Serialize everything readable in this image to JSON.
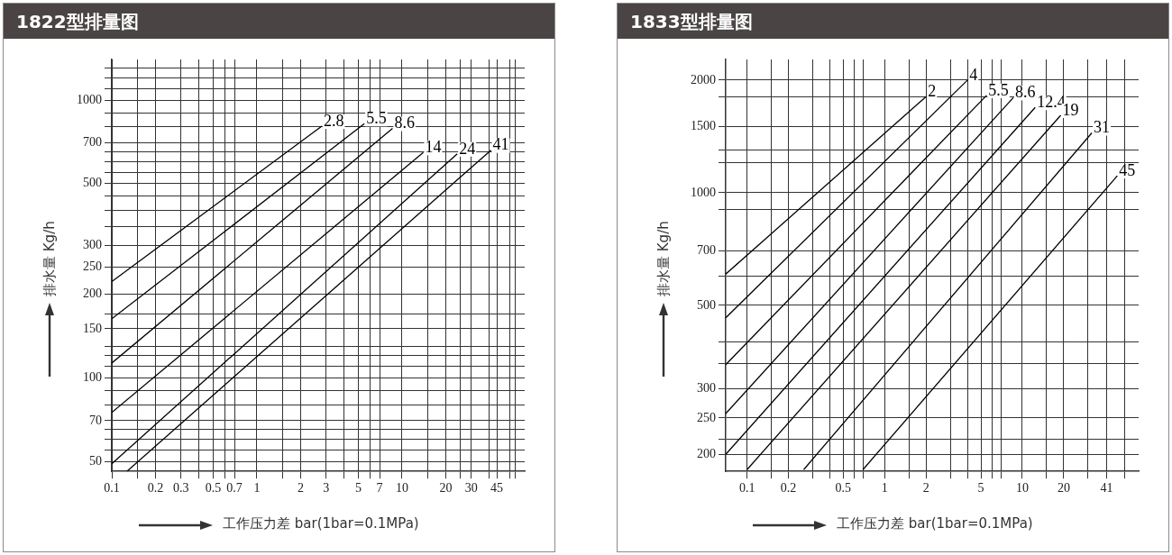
{
  "chart_data": [
    {
      "type": "line",
      "title": "1822型排量图",
      "xlabel": "工作压力差 bar(1bar=0.1MPa)",
      "ylabel": "排水量 Kg/h",
      "log": "xy",
      "grid": true,
      "marker": "none",
      "line_style": "solid",
      "xlim": [
        0.1,
        70
      ],
      "ylim": [
        46,
        1400
      ],
      "xticks": [
        0.1,
        {
          "value": 0.15,
          "label": null
        },
        0.2,
        0.3,
        {
          "value": 0.4,
          "label": null
        },
        0.5,
        {
          "value": 0.6,
          "label": null
        },
        0.7,
        1,
        {
          "value": 1.5,
          "label": null
        },
        2,
        3,
        {
          "value": 4,
          "label": null
        },
        5,
        {
          "value": 6,
          "label": null
        },
        7,
        10,
        {
          "value": 15,
          "label": null
        },
        20,
        {
          "value": 25,
          "label": null
        },
        30,
        {
          "value": 40,
          "label": null
        },
        45,
        {
          "value": 55,
          "label": null
        },
        {
          "value": 60,
          "label": null
        }
      ],
      "yticks": [
        50,
        {
          "value": 55,
          "label": null
        },
        {
          "value": 60,
          "label": null
        },
        {
          "value": 65,
          "label": null
        },
        70,
        {
          "value": 80,
          "label": null
        },
        {
          "value": 90,
          "label": null
        },
        100,
        {
          "value": 110,
          "label": null
        },
        {
          "value": 120,
          "label": null
        },
        {
          "value": 130,
          "label": null
        },
        150,
        {
          "value": 170,
          "label": null
        },
        200,
        250,
        300,
        {
          "value": 350,
          "label": null
        },
        {
          "value": 400,
          "label": null
        },
        {
          "value": 450,
          "label": null
        },
        500,
        {
          "value": 550,
          "label": null
        },
        {
          "value": 600,
          "label": null
        },
        {
          "value": 650,
          "label": null
        },
        700,
        {
          "value": 800,
          "label": null
        },
        {
          "value": 900,
          "label": null
        },
        1000,
        {
          "value": 1100,
          "label": null
        },
        {
          "value": 1200,
          "label": null
        },
        {
          "value": 1300,
          "label": null
        }
      ],
      "series": [
        {
          "name": "2.8",
          "color": "#000000",
          "x": [
            0.1,
            2.8
          ],
          "values": [
            222,
            805
          ]
        },
        {
          "name": "5.5",
          "color": "#000000",
          "x": [
            0.1,
            5.5
          ],
          "values": [
            163,
            822
          ]
        },
        {
          "name": "8.6",
          "color": "#000000",
          "x": [
            0.1,
            8.6
          ],
          "values": [
            113,
            790
          ]
        },
        {
          "name": "14",
          "color": "#000000",
          "x": [
            0.1,
            14
          ],
          "values": [
            75,
            647
          ]
        },
        {
          "name": "24",
          "color": "#000000",
          "x": [
            0.1,
            24
          ],
          "values": [
            49,
            640
          ]
        },
        {
          "name": "41",
          "color": "#000000",
          "x": [
            0.127,
            41
          ],
          "values": [
            46,
            660
          ]
        }
      ]
    },
    {
      "type": "line",
      "title": "1833型排量图",
      "xlabel": "工作压力差 bar(1bar=0.1MPa)",
      "ylabel": "排水量 Kg/h",
      "log": "xy",
      "grid": true,
      "marker": "none",
      "line_style": "solid",
      "xlim": [
        0.07,
        70
      ],
      "ylim": [
        180,
        2270
      ],
      "xticks": [
        0.1,
        {
          "value": 0.15,
          "label": null
        },
        0.2,
        {
          "value": 0.3,
          "label": null
        },
        {
          "value": 0.4,
          "label": null
        },
        0.5,
        {
          "value": 0.6,
          "label": null
        },
        {
          "value": 0.7,
          "label": null
        },
        1,
        {
          "value": 1.5,
          "label": null
        },
        2,
        {
          "value": 3,
          "label": null
        },
        {
          "value": 4,
          "label": null
        },
        5,
        {
          "value": 6,
          "label": null
        },
        {
          "value": 7,
          "label": null
        },
        10,
        {
          "value": 15,
          "label": null
        },
        20,
        {
          "value": 30,
          "label": null
        },
        41,
        {
          "value": 55,
          "label": null
        }
      ],
      "yticks": [
        200,
        {
          "value": 220,
          "label": null
        },
        250,
        300,
        {
          "value": 350,
          "label": null
        },
        {
          "value": 400,
          "label": null
        },
        500,
        {
          "value": 600,
          "label": null
        },
        700,
        {
          "value": 900,
          "label": null
        },
        1000,
        {
          "value": 1200,
          "label": null
        },
        {
          "value": 1300,
          "label": null
        },
        1500,
        {
          "value": 1800,
          "label": null
        },
        2000
      ],
      "series": [
        {
          "name": "2",
          "color": "#000000",
          "x": [
            0.07,
            2
          ],
          "values": [
            606,
            1806
          ]
        },
        {
          "name": "4",
          "color": "#000000",
          "x": [
            0.07,
            4
          ],
          "values": [
            463,
            2000
          ]
        },
        {
          "name": "5.5",
          "color": "#000000",
          "x": [
            0.07,
            5.5
          ],
          "values": [
            347,
            1820
          ]
        },
        {
          "name": "8.6",
          "color": "#000000",
          "x": [
            0.07,
            8.6
          ],
          "values": [
            257,
            1795
          ]
        },
        {
          "name": "12.4",
          "color": "#000000",
          "x": [
            0.07,
            12.4
          ],
          "values": [
            200,
            1690
          ]
        },
        {
          "name": "19",
          "color": "#000000",
          "x": [
            0.1,
            19
          ],
          "values": [
            182,
            1610
          ]
        },
        {
          "name": "31",
          "color": "#000000",
          "x": [
            0.258,
            32
          ],
          "values": [
            182,
            1445
          ]
        },
        {
          "name": "45",
          "color": "#000000",
          "x": [
            0.695,
            49
          ],
          "values": [
            182,
            1110
          ]
        }
      ]
    }
  ]
}
